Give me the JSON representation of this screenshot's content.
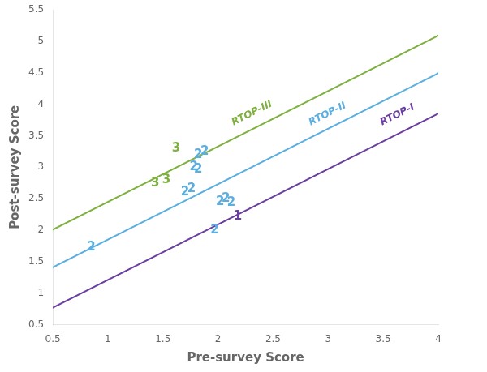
{
  "chart_data": {
    "type": "line",
    "xlabel": "Pre-survey Score",
    "ylabel": "Post-survey Score",
    "xlim": [
      0.5,
      4.0
    ],
    "ylim": [
      0.5,
      5.5
    ],
    "xticks": [
      0.5,
      1,
      1.5,
      2,
      2.5,
      3,
      3.5,
      4
    ],
    "yticks": [
      0.5,
      1,
      1.5,
      2,
      2.5,
      3,
      3.5,
      4,
      4.5,
      5,
      5.5
    ],
    "grid": false,
    "series": [
      {
        "name": "RTOP-I",
        "color": "#6B3FA0",
        "x": [
          0.5,
          4.0
        ],
        "values": [
          0.77,
          3.85
        ]
      },
      {
        "name": "RTOP-II",
        "color": "#5BAEE0",
        "x": [
          0.5,
          4.0
        ],
        "values": [
          1.41,
          4.49
        ]
      },
      {
        "name": "RTOP-III",
        "color": "#7EB040",
        "x": [
          0.5,
          4.0
        ],
        "values": [
          2.01,
          5.09
        ]
      }
    ],
    "annotations": [
      {
        "text": "2",
        "x": 0.85,
        "y": 1.73,
        "color": "#5BAEE0"
      },
      {
        "text": "2",
        "x": 1.7,
        "y": 2.6,
        "color": "#5BAEE0"
      },
      {
        "text": "2",
        "x": 1.76,
        "y": 2.65,
        "color": "#5BAEE0"
      },
      {
        "text": "2",
        "x": 1.78,
        "y": 3.0,
        "color": "#5BAEE0"
      },
      {
        "text": "2",
        "x": 1.82,
        "y": 2.97,
        "color": "#5BAEE0"
      },
      {
        "text": "2",
        "x": 1.82,
        "y": 3.2,
        "color": "#5BAEE0"
      },
      {
        "text": "2",
        "x": 1.88,
        "y": 3.25,
        "color": "#5BAEE0"
      },
      {
        "text": "2",
        "x": 1.97,
        "y": 2.0,
        "color": "#5BAEE0"
      },
      {
        "text": "2",
        "x": 2.02,
        "y": 2.45,
        "color": "#5BAEE0"
      },
      {
        "text": "2",
        "x": 2.07,
        "y": 2.5,
        "color": "#5BAEE0"
      },
      {
        "text": "2",
        "x": 2.12,
        "y": 2.44,
        "color": "#5BAEE0"
      },
      {
        "text": "1",
        "x": 2.18,
        "y": 2.22,
        "color": "#6B3FA0"
      },
      {
        "text": "3",
        "x": 1.43,
        "y": 2.75,
        "color": "#7EB040"
      },
      {
        "text": "3",
        "x": 1.53,
        "y": 2.8,
        "color": "#7EB040"
      },
      {
        "text": "3",
        "x": 1.62,
        "y": 3.3,
        "color": "#7EB040"
      },
      {
        "text": "RTOP-III",
        "x": 2.15,
        "y": 3.63,
        "color": "#7EB040"
      },
      {
        "text": "RTOP-II",
        "x": 2.85,
        "y": 3.63,
        "color": "#5BAEE0"
      },
      {
        "text": "RTOP-I",
        "x": 3.5,
        "y": 3.63,
        "color": "#6B3FA0"
      }
    ]
  }
}
